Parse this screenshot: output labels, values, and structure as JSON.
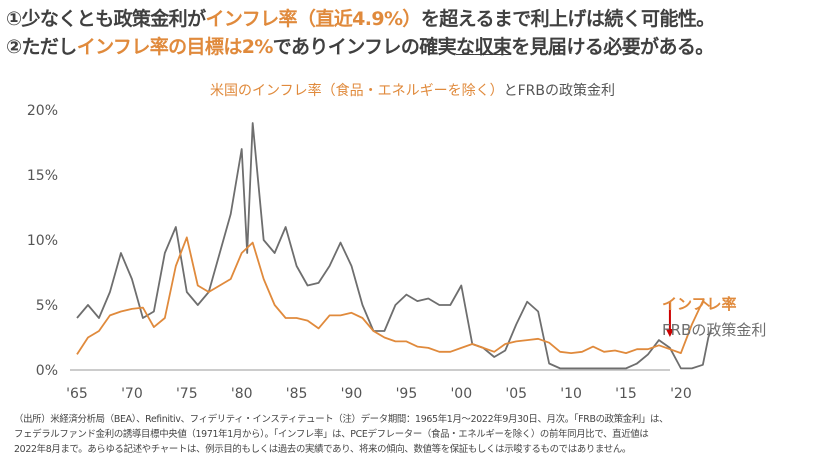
{
  "headline": {
    "line1": [
      "①少なくとも政策金利が",
      "インフレ率（直近4.9%）",
      "を超えるまで利上げは続く可能性。"
    ],
    "line2": [
      "②ただし",
      "インフレ率の目標は2%",
      "でありインフレの確実",
      "な",
      "収束",
      "を見届ける必要がある。"
    ]
  },
  "chart_data": {
    "type": "line",
    "title_orange": "米国のインフレ率（食品・エネルギーを除く）",
    "title_gray": "とFRBの政策金利",
    "xlabel": "",
    "ylabel": "",
    "xlim": [
      1965,
      2023
    ],
    "ylim": [
      0,
      20
    ],
    "yticks": [
      {
        "v": 0,
        "label": "0%"
      },
      {
        "v": 5,
        "label": "5%"
      },
      {
        "v": 10,
        "label": "10%"
      },
      {
        "v": 15,
        "label": "15%"
      },
      {
        "v": 20,
        "label": "20%"
      }
    ],
    "xticks": [
      {
        "v": 1965,
        "label": "'65"
      },
      {
        "v": 1970,
        "label": "'70"
      },
      {
        "v": 1975,
        "label": "'75"
      },
      {
        "v": 1980,
        "label": "'80"
      },
      {
        "v": 1985,
        "label": "'85"
      },
      {
        "v": 1990,
        "label": "'90"
      },
      {
        "v": 1995,
        "label": "'95"
      },
      {
        "v": 2000,
        "label": "'00"
      },
      {
        "v": 2005,
        "label": "'05"
      },
      {
        "v": 2010,
        "label": "'10"
      },
      {
        "v": 2015,
        "label": "'15"
      },
      {
        "v": 2020,
        "label": "'20"
      }
    ],
    "series": [
      {
        "name": "インフレ率",
        "color": "#e08a3c",
        "points": [
          [
            1965,
            1.2
          ],
          [
            1966,
            2.5
          ],
          [
            1967,
            3
          ],
          [
            1968,
            4.2
          ],
          [
            1969,
            4.5
          ],
          [
            1970,
            4.7
          ],
          [
            1971,
            4.8
          ],
          [
            1972,
            3.3
          ],
          [
            1973,
            4
          ],
          [
            1974,
            8
          ],
          [
            1975,
            10.2
          ],
          [
            1976,
            6.5
          ],
          [
            1977,
            6
          ],
          [
            1978,
            6.5
          ],
          [
            1979,
            7
          ],
          [
            1980,
            9
          ],
          [
            1981,
            9.8
          ],
          [
            1982,
            7
          ],
          [
            1983,
            5
          ],
          [
            1984,
            4
          ],
          [
            1985,
            4
          ],
          [
            1986,
            3.8
          ],
          [
            1987,
            3.2
          ],
          [
            1988,
            4.2
          ],
          [
            1989,
            4.2
          ],
          [
            1990,
            4.4
          ],
          [
            1991,
            4
          ],
          [
            1992,
            3
          ],
          [
            1993,
            2.5
          ],
          [
            1994,
            2.2
          ],
          [
            1995,
            2.2
          ],
          [
            1996,
            1.8
          ],
          [
            1997,
            1.7
          ],
          [
            1998,
            1.4
          ],
          [
            1999,
            1.4
          ],
          [
            2000,
            1.7
          ],
          [
            2001,
            2
          ],
          [
            2002,
            1.7
          ],
          [
            2003,
            1.4
          ],
          [
            2004,
            2
          ],
          [
            2005,
            2.2
          ],
          [
            2006,
            2.3
          ],
          [
            2007,
            2.4
          ],
          [
            2008,
            2.1
          ],
          [
            2009,
            1.4
          ],
          [
            2010,
            1.3
          ],
          [
            2011,
            1.4
          ],
          [
            2012,
            1.8
          ],
          [
            2013,
            1.4
          ],
          [
            2014,
            1.5
          ],
          [
            2015,
            1.3
          ],
          [
            2016,
            1.6
          ],
          [
            2017,
            1.6
          ],
          [
            2018,
            1.9
          ],
          [
            2019,
            1.6
          ],
          [
            2020,
            1.3
          ],
          [
            2021,
            3.5
          ],
          [
            2022,
            5.3
          ],
          [
            2022.6,
            4.9
          ]
        ]
      },
      {
        "name": "FRBの政策金利",
        "color": "#6e6e6e",
        "points": [
          [
            1965,
            4
          ],
          [
            1966,
            5
          ],
          [
            1967,
            4
          ],
          [
            1968,
            6
          ],
          [
            1969,
            9
          ],
          [
            1970,
            7
          ],
          [
            1971,
            4
          ],
          [
            1972,
            4.5
          ],
          [
            1973,
            9
          ],
          [
            1974,
            11
          ],
          [
            1975,
            6
          ],
          [
            1976,
            5
          ],
          [
            1977,
            6
          ],
          [
            1978,
            9
          ],
          [
            1979,
            12
          ],
          [
            1980,
            17
          ],
          [
            1980.5,
            9
          ],
          [
            1981,
            19
          ],
          [
            1982,
            10
          ],
          [
            1983,
            9
          ],
          [
            1984,
            11
          ],
          [
            1985,
            8
          ],
          [
            1986,
            6.5
          ],
          [
            1987,
            6.7
          ],
          [
            1988,
            8
          ],
          [
            1989,
            9.8
          ],
          [
            1990,
            8
          ],
          [
            1991,
            5
          ],
          [
            1992,
            3
          ],
          [
            1993,
            3
          ],
          [
            1994,
            5
          ],
          [
            1995,
            5.8
          ],
          [
            1996,
            5.3
          ],
          [
            1997,
            5.5
          ],
          [
            1998,
            5
          ],
          [
            1999,
            5
          ],
          [
            2000,
            6.5
          ],
          [
            2001,
            2
          ],
          [
            2002,
            1.7
          ],
          [
            2003,
            1
          ],
          [
            2004,
            1.5
          ],
          [
            2005,
            3.5
          ],
          [
            2006,
            5.25
          ],
          [
            2007,
            4.5
          ],
          [
            2008,
            0.5
          ],
          [
            2009,
            0.125
          ],
          [
            2015,
            0.125
          ],
          [
            2016,
            0.5
          ],
          [
            2017,
            1.2
          ],
          [
            2018,
            2.3
          ],
          [
            2019,
            1.7
          ],
          [
            2020,
            0.125
          ],
          [
            2021,
            0.125
          ],
          [
            2022,
            0.4
          ],
          [
            2022.5,
            2.5
          ],
          [
            2022.75,
            3.1
          ]
        ]
      }
    ],
    "annotation": "arrow at 2019"
  },
  "note": [
    "（出所）米経済分析局（BEA）、Refinitiv、フィデリティ・インスティテュート（注）データ期間：1965年1月～2022年9月30日、月次。「FRBの政策金利」は、",
    "フェデラルファンド金利の誘導目標中央値（1971年1月から）。「インフレ率」は、PCEデフレーター（食品・エネルギーを除く）の前年同月比で、直近値は",
    "2022年8月まで。あらゆる記述やチャートは、例示目的もしくは過去の実績であり、将来の傾向、数値等を保証もしくは示唆するものではありません。"
  ]
}
